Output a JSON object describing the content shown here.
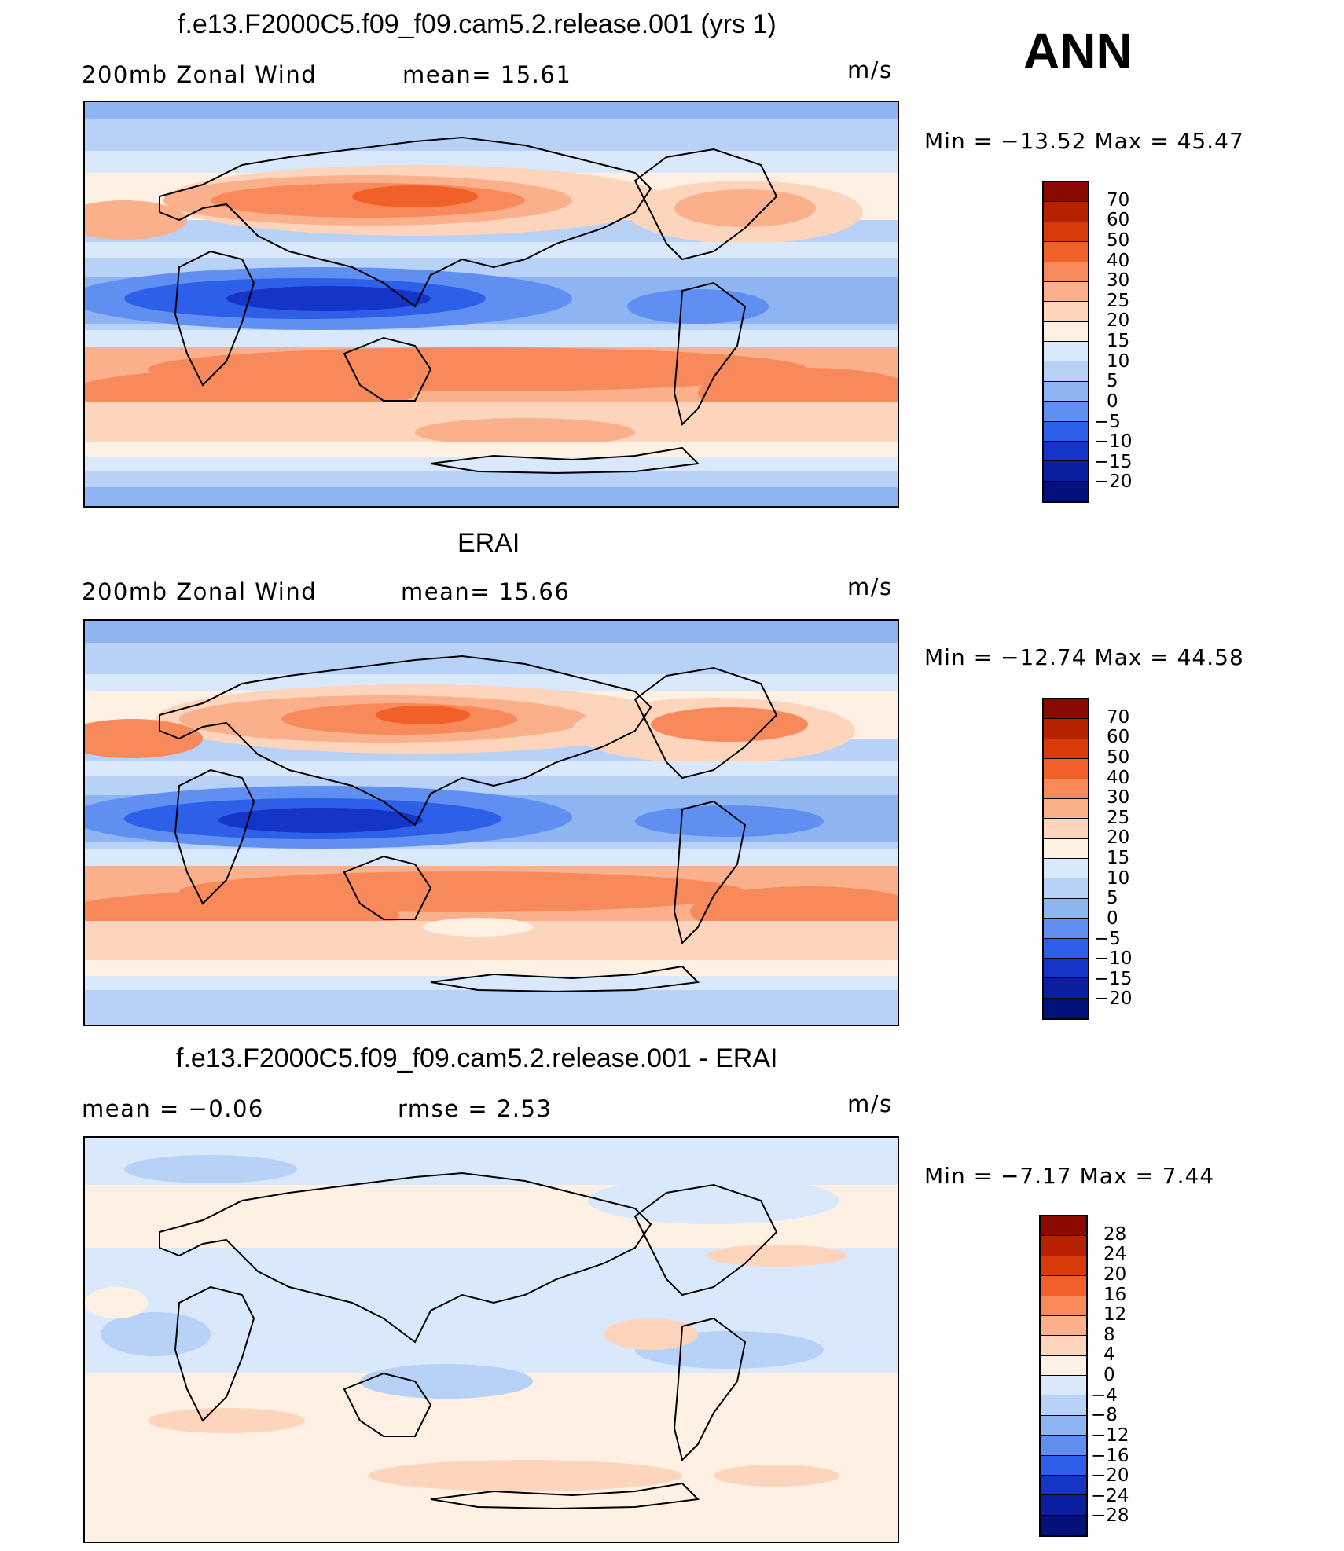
{
  "season": "ANN",
  "panels": [
    {
      "title": "f.e13.F2000C5.f09_f09.cam5.2.release.001 (yrs 1)",
      "left_label": "200mb Zonal Wind",
      "center_label": "mean=   15.61",
      "units": "m/s",
      "minmax": "Min  =  −13.52  Max  =    45.47",
      "colorbar": {
        "labels": [
          "70",
          "60",
          "50",
          "40",
          "30",
          "25",
          "20",
          "15",
          "10",
          "5",
          "0",
          "−5",
          "−10",
          "−15",
          "−20"
        ],
        "colors": [
          "#8a0a00",
          "#b52200",
          "#d93a0a",
          "#f2602a",
          "#f8895a",
          "#fbb08c",
          "#fdd4bc",
          "#fff0e4",
          "#d9e9fb",
          "#b7d1f7",
          "#8fb4f2",
          "#5f8ff0",
          "#2e5fe8",
          "#1535c8",
          "#0a1fa0",
          "#03127a"
        ]
      }
    },
    {
      "title": "ERAI",
      "left_label": "200mb Zonal Wind",
      "center_label": "mean=   15.66",
      "units": "m/s",
      "minmax": "Min  =  −12.74  Max  =    44.58",
      "colorbar": {
        "labels": [
          "70",
          "60",
          "50",
          "40",
          "30",
          "25",
          "20",
          "15",
          "10",
          "5",
          "0",
          "−5",
          "−10",
          "−15",
          "−20"
        ],
        "colors": [
          "#8a0a00",
          "#b52200",
          "#d93a0a",
          "#f2602a",
          "#f8895a",
          "#fbb08c",
          "#fdd4bc",
          "#fff0e4",
          "#d9e9fb",
          "#b7d1f7",
          "#8fb4f2",
          "#5f8ff0",
          "#2e5fe8",
          "#1535c8",
          "#0a1fa0",
          "#03127a"
        ]
      }
    },
    {
      "title": "f.e13.F2000C5.f09_f09.cam5.2.release.001 - ERAI",
      "left_label": "mean  =    −0.06",
      "center_label": "rmse  =     2.53",
      "units": "m/s",
      "minmax": "Min  =    −7.17  Max  =     7.44",
      "colorbar": {
        "labels": [
          "28",
          "24",
          "20",
          "16",
          "12",
          "8",
          "4",
          "0",
          "−4",
          "−8",
          "−12",
          "−16",
          "−20",
          "−24",
          "−28"
        ],
        "colors": [
          "#8a0a00",
          "#b52200",
          "#d93a0a",
          "#f2602a",
          "#f8895a",
          "#fbb08c",
          "#fdd4bc",
          "#fff0e4",
          "#d9e9fb",
          "#b7d1f7",
          "#8fb4f2",
          "#5f8ff0",
          "#2e5fe8",
          "#1535c8",
          "#0a1fa0",
          "#03127a"
        ]
      }
    }
  ]
}
